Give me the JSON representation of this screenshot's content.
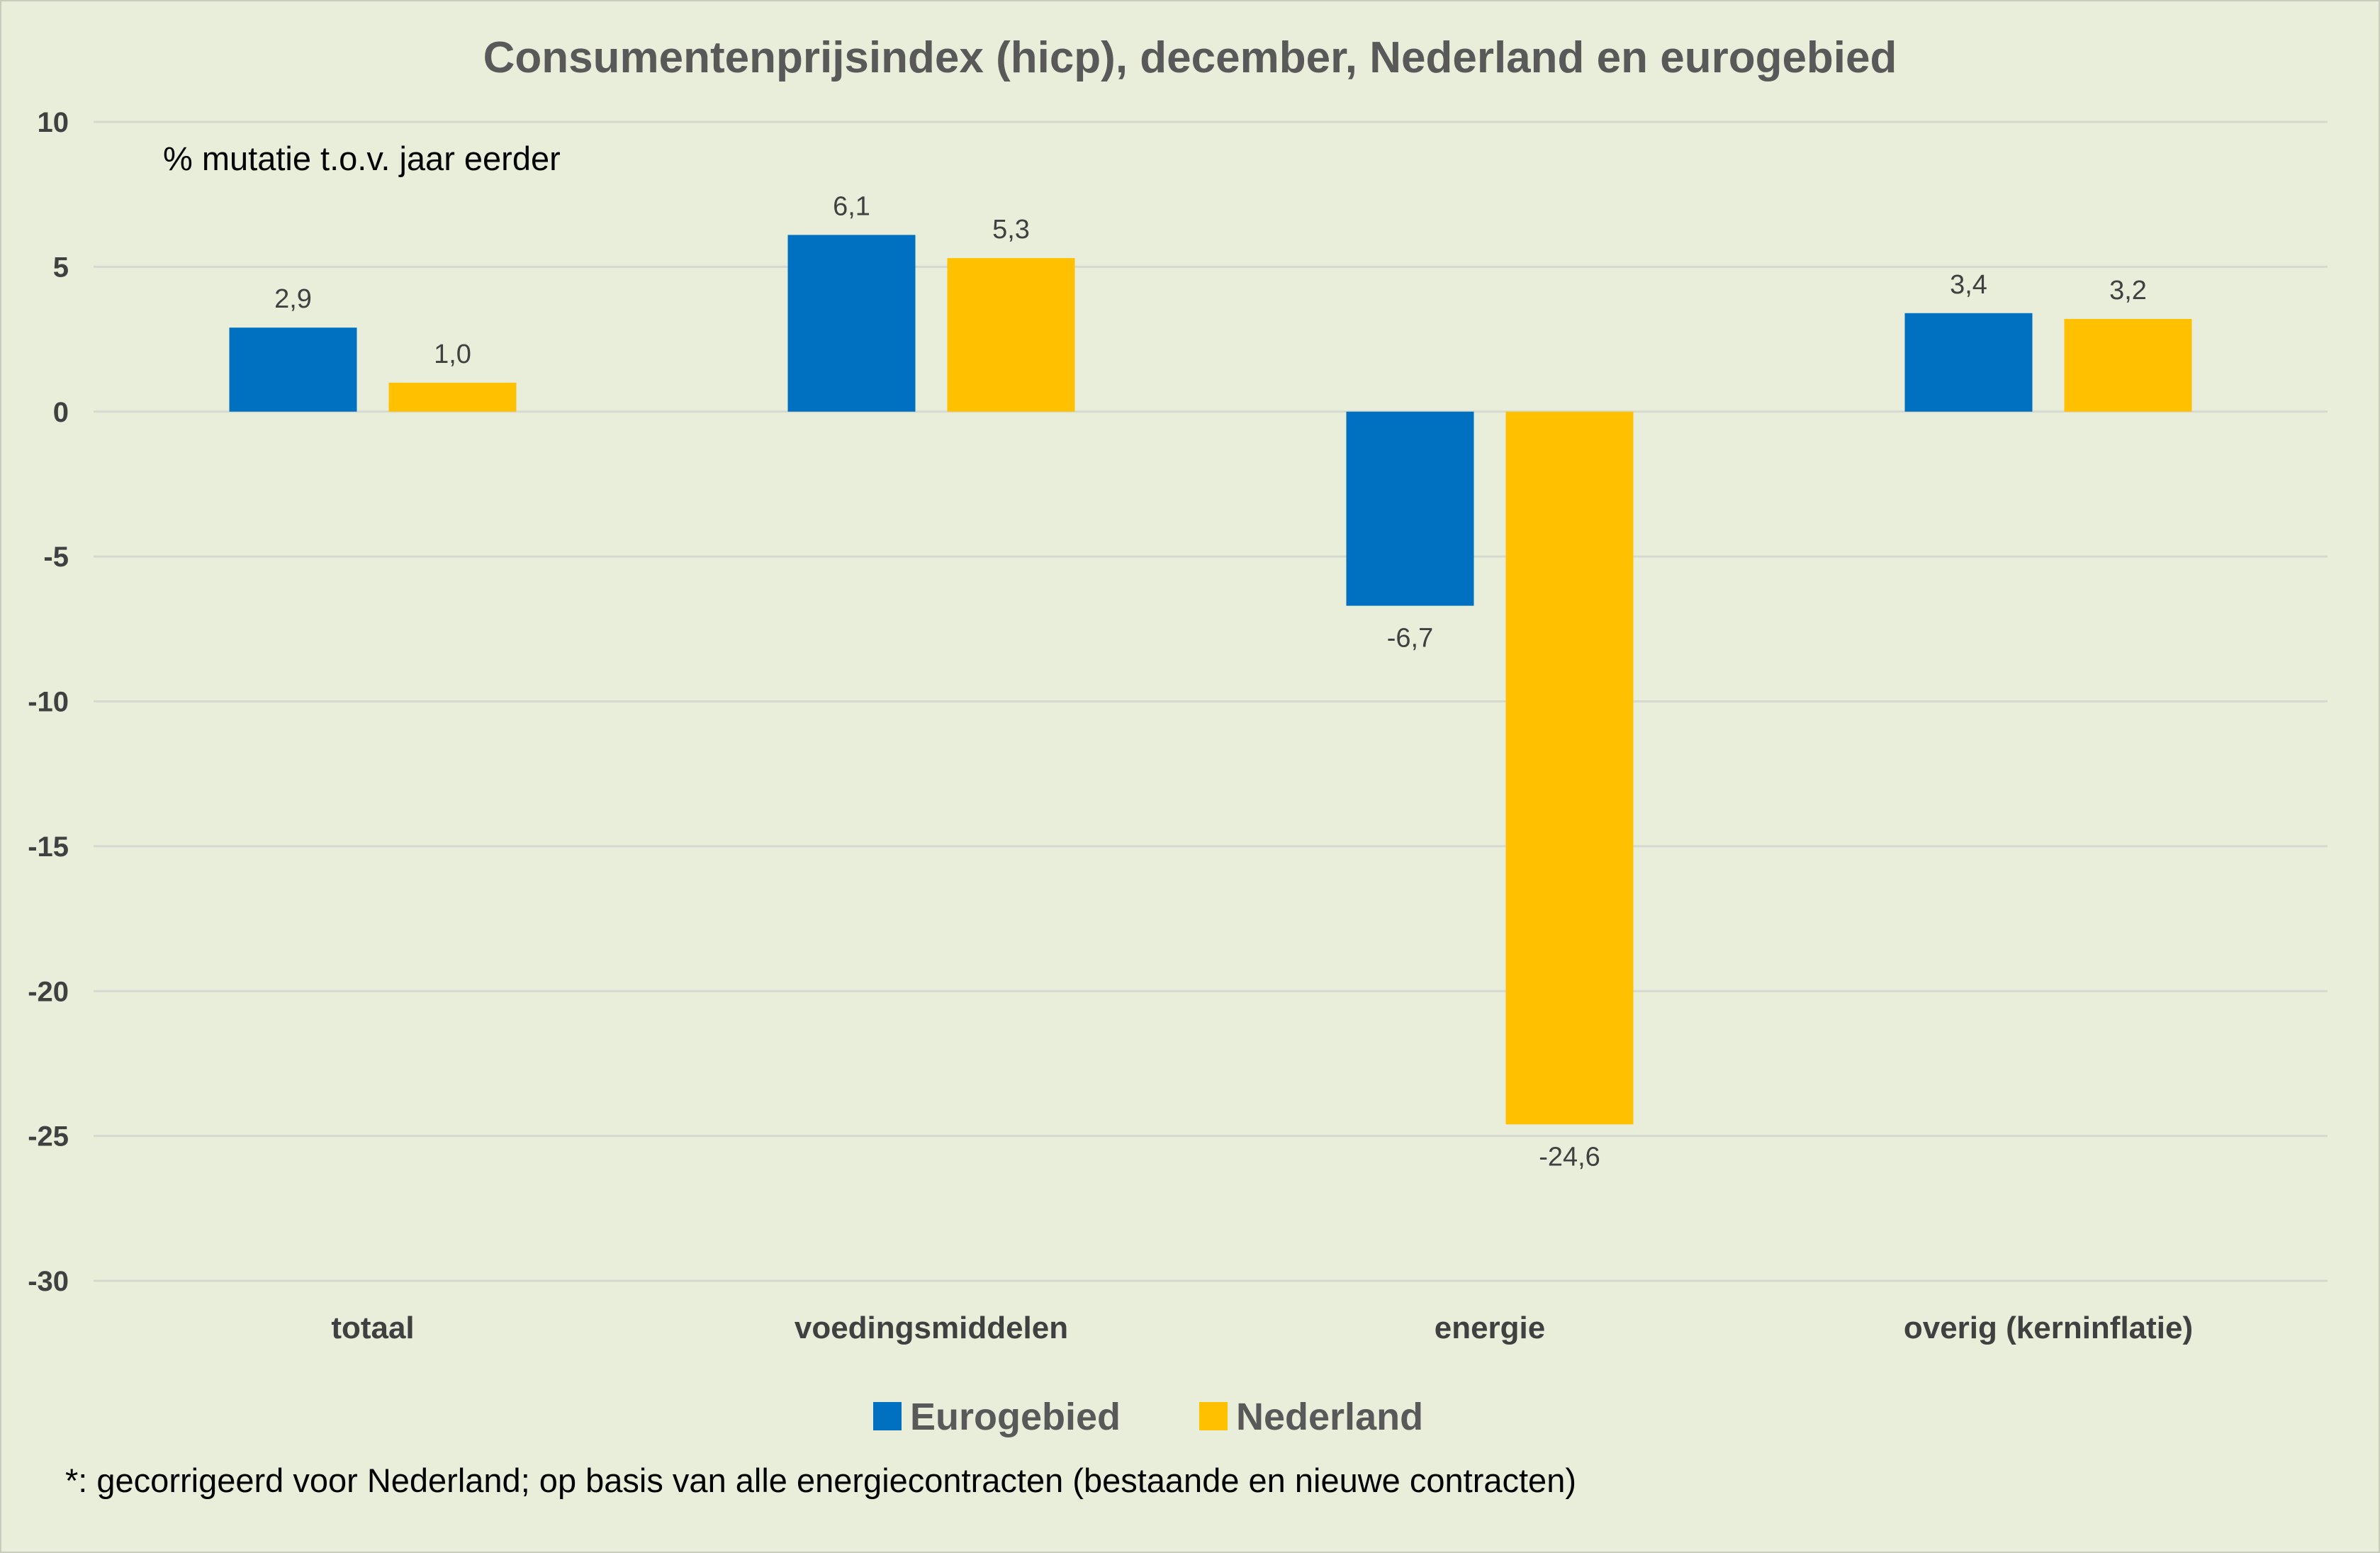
{
  "chart_data": {
    "type": "bar",
    "title": "Consumentenprijsindex (hicp), december, Nederland en eurogebied",
    "subtitle": "% mutatie t.o.v. jaar eerder",
    "categories": [
      "totaal",
      "voedingsmiddelen",
      "energie",
      "overig (kerninflatie)"
    ],
    "series": [
      {
        "name": "Eurogebied",
        "color": "#0070c0",
        "values": [
          2.9,
          6.1,
          -6.7,
          3.4
        ],
        "labels": [
          "2,9",
          "6,1",
          "-6,7",
          "3,4"
        ]
      },
      {
        "name": "Nederland",
        "color": "#ffc000",
        "values": [
          1.0,
          5.3,
          -24.6,
          3.2
        ],
        "labels": [
          "1,0",
          "5,3",
          "-24,6",
          "3,2"
        ]
      }
    ],
    "ylim": [
      -30,
      10
    ],
    "yticks": [
      10,
      5,
      0,
      -5,
      -10,
      -15,
      -20,
      -25,
      -30
    ],
    "grid": true,
    "legend_position": "bottom",
    "footnote": "*: gecorrigeerd voor Nederland; op basis van alle energiecontracten (bestaande en nieuwe contracten)"
  }
}
